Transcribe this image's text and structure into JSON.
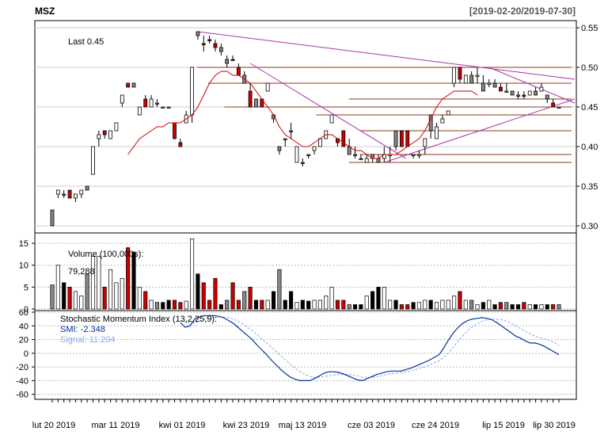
{
  "header": {
    "symbol": "MSZ",
    "range": "[2019-02-20/2019-07-30]"
  },
  "colors": {
    "up": "#ffffff",
    "down": "#cc0000",
    "neutral": "#888888",
    "ma": "#cc0000",
    "trend": "#aa33aa",
    "smi": "#003399",
    "signal": "#88aaee",
    "level": "#8b3a1a"
  },
  "chart_data": [
    {
      "type": "candlestick",
      "panel": "price",
      "last_label": "Last 0.45",
      "ylim": [
        0.295,
        0.555
      ],
      "y_ticks": [
        0.55,
        0.5,
        0.45,
        0.4,
        0.35,
        0.3
      ],
      "y_tick_labels": [
        "0.55",
        "0.50",
        "0.45",
        "0.40",
        "0.35",
        "0.30"
      ],
      "x_tick_labels": [
        "lut 20 2019",
        "mar 11 2019",
        "kwi 01 2019",
        "kwi 23 2019",
        "maj 13 2019",
        "cze 03 2019",
        "cze 24 2019",
        "lip 15 2019",
        "lip 30 2019"
      ],
      "candles": [
        [
          0.3,
          0.32,
          0.3,
          0.32,
          "n"
        ],
        [
          0.34,
          0.345,
          0.335,
          0.345,
          "u"
        ],
        [
          0.34,
          0.345,
          0.335,
          0.34,
          "n"
        ],
        [
          0.345,
          0.345,
          0.335,
          0.335,
          "d"
        ],
        [
          0.335,
          0.34,
          0.33,
          0.34,
          "u"
        ],
        [
          0.34,
          0.345,
          0.335,
          0.345,
          "u"
        ],
        [
          0.345,
          0.35,
          0.345,
          0.35,
          "n"
        ],
        [
          0.365,
          0.4,
          0.365,
          0.4,
          "u"
        ],
        [
          0.41,
          0.42,
          0.4,
          0.415,
          "u"
        ],
        [
          0.415,
          0.42,
          0.41,
          0.42,
          "d"
        ],
        [
          0.41,
          0.42,
          0.41,
          0.42,
          "u"
        ],
        [
          0.42,
          0.43,
          0.42,
          0.43,
          "u"
        ],
        [
          0.455,
          0.465,
          0.45,
          0.465,
          "u"
        ],
        [
          0.475,
          0.48,
          0.475,
          0.48,
          "d"
        ],
        [
          0.475,
          0.48,
          0.475,
          0.48,
          "n"
        ],
        [
          0.44,
          0.45,
          0.44,
          0.45,
          "u"
        ],
        [
          0.45,
          0.465,
          0.45,
          0.46,
          "d"
        ],
        [
          0.46,
          0.465,
          0.45,
          0.45,
          "u"
        ],
        [
          0.455,
          0.46,
          0.45,
          0.455,
          "n"
        ],
        [
          0.45,
          0.45,
          0.45,
          0.45,
          "n"
        ],
        [
          0.45,
          0.45,
          0.45,
          0.45,
          "n"
        ],
        [
          0.43,
          0.43,
          0.41,
          0.41,
          "d"
        ],
        [
          0.405,
          0.41,
          0.4,
          0.4,
          "d"
        ],
        [
          0.43,
          0.445,
          0.43,
          0.44,
          "u"
        ],
        [
          0.44,
          0.5,
          0.43,
          0.5,
          "u"
        ],
        [
          0.54,
          0.545,
          0.535,
          0.545,
          "n"
        ],
        [
          0.53,
          0.54,
          0.52,
          0.53,
          "d"
        ],
        [
          0.535,
          0.54,
          0.53,
          0.535,
          "d"
        ],
        [
          0.53,
          0.535,
          0.52,
          0.525,
          "d"
        ],
        [
          0.525,
          0.53,
          0.515,
          0.52,
          "n"
        ],
        [
          0.51,
          0.515,
          0.5,
          0.505,
          "n"
        ],
        [
          0.51,
          0.515,
          0.51,
          0.51,
          "d"
        ],
        [
          0.5,
          0.505,
          0.49,
          0.49,
          "d"
        ],
        [
          0.49,
          0.495,
          0.48,
          0.48,
          "n"
        ],
        [
          0.47,
          0.48,
          0.45,
          0.45,
          "d"
        ],
        [
          0.46,
          0.46,
          0.45,
          0.45,
          "n"
        ],
        [
          0.46,
          0.46,
          0.45,
          0.45,
          "d"
        ],
        [
          0.47,
          0.48,
          0.47,
          0.48,
          "u"
        ],
        [
          0.44,
          0.44,
          0.43,
          0.435,
          "n"
        ],
        [
          0.4,
          0.4,
          0.39,
          0.395,
          "n"
        ],
        [
          0.41,
          0.41,
          0.4,
          0.41,
          "n"
        ],
        [
          0.42,
          0.43,
          0.41,
          0.42,
          "n"
        ],
        [
          0.38,
          0.4,
          0.38,
          0.4,
          "u"
        ],
        [
          0.38,
          0.385,
          0.375,
          0.38,
          "n"
        ],
        [
          0.39,
          0.39,
          0.385,
          0.39,
          "n"
        ],
        [
          0.395,
          0.4,
          0.39,
          0.4,
          "u"
        ],
        [
          0.4,
          0.41,
          0.4,
          0.41,
          "u"
        ],
        [
          0.41,
          0.42,
          0.41,
          0.42,
          "u"
        ],
        [
          0.43,
          0.44,
          0.43,
          0.44,
          "u"
        ],
        [
          0.41,
          0.41,
          0.4,
          0.405,
          "d"
        ],
        [
          0.42,
          0.42,
          0.4,
          0.4,
          "d"
        ],
        [
          0.4,
          0.41,
          0.39,
          0.39,
          "n"
        ],
        [
          0.39,
          0.4,
          0.385,
          0.39,
          "n"
        ],
        [
          0.385,
          0.39,
          0.385,
          0.385,
          "n"
        ],
        [
          0.385,
          0.39,
          0.38,
          0.38,
          "u"
        ],
        [
          0.39,
          0.39,
          0.38,
          0.385,
          "n"
        ],
        [
          0.38,
          0.39,
          0.38,
          0.385,
          "n"
        ],
        [
          0.39,
          0.4,
          0.38,
          0.385,
          "u"
        ],
        [
          0.39,
          0.4,
          0.38,
          0.39,
          "u"
        ],
        [
          0.4,
          0.42,
          0.395,
          0.42,
          "n"
        ],
        [
          0.42,
          0.42,
          0.4,
          0.4,
          "d"
        ],
        [
          0.4,
          0.42,
          0.4,
          0.42,
          "d"
        ],
        [
          0.39,
          0.39,
          0.385,
          0.39,
          "n"
        ],
        [
          0.39,
          0.395,
          0.385,
          0.39,
          "u"
        ],
        [
          0.4,
          0.41,
          0.39,
          0.41,
          "u"
        ],
        [
          0.42,
          0.44,
          0.41,
          0.44,
          "n"
        ],
        [
          0.41,
          0.43,
          0.41,
          0.425,
          "u"
        ],
        [
          0.43,
          0.44,
          0.43,
          0.435,
          "u"
        ],
        [
          0.44,
          0.445,
          0.44,
          0.445,
          "u"
        ],
        [
          0.48,
          0.5,
          0.475,
          0.5,
          "u"
        ],
        [
          0.5,
          0.5,
          0.48,
          0.485,
          "d"
        ],
        [
          0.48,
          0.49,
          0.48,
          0.49,
          "u"
        ],
        [
          0.49,
          0.495,
          0.48,
          0.48,
          "n"
        ],
        [
          0.49,
          0.5,
          0.48,
          0.49,
          "u"
        ],
        [
          0.48,
          0.49,
          0.47,
          0.47,
          "n"
        ],
        [
          0.48,
          0.485,
          0.475,
          0.48,
          "u"
        ],
        [
          0.48,
          0.485,
          0.475,
          0.475,
          "n"
        ],
        [
          0.475,
          0.48,
          0.47,
          0.47,
          "d"
        ],
        [
          0.47,
          0.48,
          0.47,
          0.47,
          "n"
        ],
        [
          0.47,
          0.47,
          0.465,
          0.465,
          "n"
        ],
        [
          0.465,
          0.47,
          0.46,
          0.465,
          "n"
        ],
        [
          0.465,
          0.47,
          0.46,
          0.465,
          "d"
        ],
        [
          0.465,
          0.47,
          0.465,
          0.47,
          "u"
        ],
        [
          0.47,
          0.475,
          0.465,
          0.465,
          "n"
        ],
        [
          0.47,
          0.48,
          0.47,
          0.475,
          "u"
        ],
        [
          0.465,
          0.465,
          0.455,
          0.46,
          "n"
        ],
        [
          0.455,
          0.46,
          0.45,
          0.45,
          "d"
        ],
        [
          0.45,
          0.45,
          0.45,
          0.45,
          "n"
        ]
      ],
      "moving_average": [
        0.39,
        0.4,
        0.41,
        0.415,
        0.42,
        0.425,
        0.425,
        0.43,
        0.43,
        0.43,
        0.435,
        0.44,
        0.45,
        0.465,
        0.48,
        0.49,
        0.495,
        0.495,
        0.49,
        0.49,
        0.485,
        0.48,
        0.47,
        0.46,
        0.45,
        0.44,
        0.425,
        0.415,
        0.41,
        0.405,
        0.4,
        0.4,
        0.405,
        0.41,
        0.415,
        0.415,
        0.41,
        0.405,
        0.4,
        0.395,
        0.395,
        0.39,
        0.385,
        0.385,
        0.39,
        0.39,
        0.39,
        0.395,
        0.4,
        0.405,
        0.41,
        0.42,
        0.435,
        0.45,
        0.46,
        0.465,
        0.47,
        0.47,
        0.47,
        0.47,
        0.465
      ],
      "ma_start_index": 13,
      "resistance_levels": [
        0.5,
        0.48,
        0.46,
        0.45,
        0.44,
        0.42,
        0.39,
        0.38
      ],
      "trend_lines": [
        {
          "from": [
            25,
            0.545
          ],
          "to": [
            88,
            0.485
          ]
        },
        {
          "from": [
            34,
            0.505
          ],
          "to": [
            58,
            0.385
          ]
        },
        {
          "from": [
            57,
            0.38
          ],
          "to": [
            88,
            0.46
          ]
        },
        {
          "from": [
            75,
            0.5
          ],
          "to": [
            88,
            0.455
          ]
        }
      ]
    },
    {
      "type": "bar",
      "panel": "volume",
      "label": "Volume (100,000s):",
      "value_label": "79,288",
      "ylim": [
        0,
        17
      ],
      "y_ticks": [
        0,
        5,
        10,
        15
      ],
      "y_tick_labels": [
        "0",
        "5",
        "10",
        "15"
      ],
      "values": [
        5.5,
        10,
        6,
        5,
        4,
        3,
        8,
        12,
        12,
        5,
        9,
        6,
        7,
        14,
        13,
        5,
        4,
        2,
        1.5,
        1.5,
        2,
        2,
        1.5,
        1.8,
        16,
        8,
        6,
        2,
        7,
        1,
        2,
        6,
        2,
        4,
        5,
        2,
        2,
        2,
        4,
        9,
        2,
        4,
        1.5,
        2,
        1.8,
        2,
        2,
        3,
        5,
        2,
        2,
        1,
        1,
        1,
        3,
        4,
        5,
        5,
        2,
        2,
        1,
        1,
        1.5,
        1.5,
        2,
        2,
        1.5,
        2,
        2,
        3,
        4,
        2,
        2,
        1,
        1.5,
        2,
        1,
        1.5,
        1.5,
        1,
        1,
        1.5,
        1,
        1,
        1,
        1,
        1,
        1
      ],
      "colors_by": "candles"
    },
    {
      "type": "line",
      "panel": "smi",
      "label": "Stochastic Momentum Index (13,2,25,9):",
      "smi_label": "SMI: -2.348",
      "signal_label": "Signal: 11.204",
      "ylim": [
        -65,
        60
      ],
      "y_ticks": [
        60,
        40,
        20,
        0,
        -20,
        -40,
        -60
      ],
      "y_tick_labels": [
        "60",
        "40",
        "20",
        "0",
        "-20",
        "-40",
        "-60"
      ],
      "smi_start_index": 22,
      "smi": [
        45,
        38,
        40,
        50,
        53,
        55,
        55,
        55,
        54,
        52,
        48,
        44,
        38,
        32,
        26,
        20,
        12,
        5,
        -2,
        -10,
        -17,
        -24,
        -30,
        -35,
        -38,
        -40,
        -40,
        -40,
        -37,
        -33,
        -29,
        -27,
        -27,
        -28,
        -30,
        -33,
        -36,
        -39,
        -40,
        -37,
        -34,
        -31,
        -29,
        -27,
        -26,
        -26,
        -26,
        -24,
        -22,
        -19,
        -16,
        -13,
        -10,
        -6,
        -2,
        8,
        20,
        30,
        38,
        44,
        48,
        50,
        51,
        52,
        51,
        49,
        45,
        40,
        35,
        30,
        25,
        22,
        18,
        15,
        15,
        13,
        10,
        6,
        2,
        -2
      ],
      "signal": [
        48,
        46,
        44,
        45,
        47,
        49,
        51,
        52,
        53,
        53,
        52,
        50,
        47,
        43,
        38,
        33,
        27,
        21,
        15,
        9,
        3,
        -4,
        -10,
        -16,
        -22,
        -27,
        -31,
        -34,
        -35,
        -35,
        -34,
        -33,
        -32,
        -31,
        -31,
        -31,
        -32,
        -33,
        -35,
        -35,
        -35,
        -34,
        -33,
        -31,
        -30,
        -29,
        -28,
        -27,
        -26,
        -24,
        -22,
        -20,
        -17,
        -14,
        -11,
        -6,
        1,
        9,
        18,
        26,
        33,
        39,
        43,
        47,
        49,
        50,
        50,
        49,
        47,
        44,
        40,
        36,
        32,
        28,
        25,
        23,
        21,
        19,
        16,
        11
      ]
    }
  ]
}
